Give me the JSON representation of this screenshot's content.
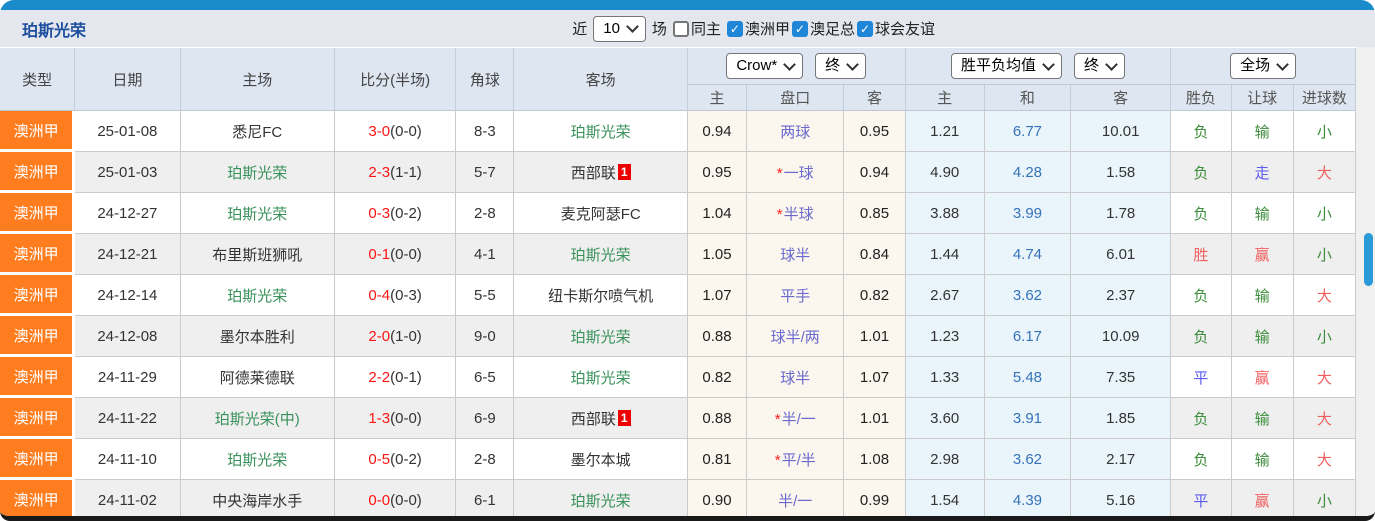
{
  "panel": {
    "title": "珀斯光荣",
    "controls": {
      "near_label": "近",
      "count_value": "10",
      "games_label": "场",
      "same_home": {
        "label": "同主",
        "checked": false
      },
      "league_filters": [
        {
          "label": "澳洲甲",
          "checked": true
        },
        {
          "label": "澳足总",
          "checked": true
        },
        {
          "label": "球会友谊",
          "checked": true
        }
      ]
    }
  },
  "table": {
    "main_headers": [
      "类型",
      "日期",
      "主场",
      "比分(半场)",
      "角球",
      "客场"
    ],
    "odds_group": {
      "company_select": "Crow*",
      "time_select": "终"
    },
    "mean_group": {
      "label_select": "胜平负均值",
      "time_select": "终"
    },
    "result_group": {
      "scope_select": "全场"
    },
    "sub_headers": [
      "主",
      "盘口",
      "客",
      "主",
      "和",
      "客",
      "胜负",
      "让球",
      "进球数"
    ],
    "rows": [
      {
        "league": "澳洲甲",
        "date": "25-01-08",
        "home": {
          "name": "悉尼FC",
          "is_focus": false,
          "badge": null
        },
        "score": {
          "full": "3-0",
          "half": "(0-0)"
        },
        "corners": "8-3",
        "away": {
          "name": "珀斯光荣",
          "is_focus": true,
          "badge": null
        },
        "odds": {
          "home": "0.94",
          "handicap": "两球",
          "star": false,
          "away": "0.95"
        },
        "mean": {
          "home": "1.21",
          "draw": "6.77",
          "away": "10.01"
        },
        "results": {
          "outcome": {
            "text": "负",
            "tone": "green"
          },
          "handicap": {
            "text": "输",
            "tone": "green"
          },
          "goals": {
            "text": "小",
            "tone": "green"
          }
        }
      },
      {
        "league": "澳洲甲",
        "date": "25-01-03",
        "home": {
          "name": "珀斯光荣",
          "is_focus": true,
          "badge": null
        },
        "score": {
          "full": "2-3",
          "half": "(1-1)"
        },
        "corners": "5-7",
        "away": {
          "name": "西部联",
          "is_focus": false,
          "badge": "1"
        },
        "odds": {
          "home": "0.95",
          "handicap": "一球",
          "star": true,
          "away": "0.94"
        },
        "mean": {
          "home": "4.90",
          "draw": "4.28",
          "away": "1.58"
        },
        "results": {
          "outcome": {
            "text": "负",
            "tone": "green"
          },
          "handicap": {
            "text": "走",
            "tone": "blue"
          },
          "goals": {
            "text": "大",
            "tone": "red"
          }
        }
      },
      {
        "league": "澳洲甲",
        "date": "24-12-27",
        "home": {
          "name": "珀斯光荣",
          "is_focus": true,
          "badge": null
        },
        "score": {
          "full": "0-3",
          "half": "(0-2)"
        },
        "corners": "2-8",
        "away": {
          "name": "麦克阿瑟FC",
          "is_focus": false,
          "badge": null
        },
        "odds": {
          "home": "1.04",
          "handicap": "半球",
          "star": true,
          "away": "0.85"
        },
        "mean": {
          "home": "3.88",
          "draw": "3.99",
          "away": "1.78"
        },
        "results": {
          "outcome": {
            "text": "负",
            "tone": "green"
          },
          "handicap": {
            "text": "输",
            "tone": "green"
          },
          "goals": {
            "text": "小",
            "tone": "green"
          }
        }
      },
      {
        "league": "澳洲甲",
        "date": "24-12-21",
        "home": {
          "name": "布里斯班狮吼",
          "is_focus": false,
          "badge": null
        },
        "score": {
          "full": "0-1",
          "half": "(0-0)"
        },
        "corners": "4-1",
        "away": {
          "name": "珀斯光荣",
          "is_focus": true,
          "badge": null
        },
        "odds": {
          "home": "1.05",
          "handicap": "球半",
          "star": false,
          "away": "0.84"
        },
        "mean": {
          "home": "1.44",
          "draw": "4.74",
          "away": "6.01"
        },
        "results": {
          "outcome": {
            "text": "胜",
            "tone": "red"
          },
          "handicap": {
            "text": "赢",
            "tone": "red"
          },
          "goals": {
            "text": "小",
            "tone": "green"
          }
        }
      },
      {
        "league": "澳洲甲",
        "date": "24-12-14",
        "home": {
          "name": "珀斯光荣",
          "is_focus": true,
          "badge": null
        },
        "score": {
          "full": "0-4",
          "half": "(0-3)"
        },
        "corners": "5-5",
        "away": {
          "name": "纽卡斯尔喷气机",
          "is_focus": false,
          "badge": null
        },
        "odds": {
          "home": "1.07",
          "handicap": "平手",
          "star": false,
          "away": "0.82"
        },
        "mean": {
          "home": "2.67",
          "draw": "3.62",
          "away": "2.37"
        },
        "results": {
          "outcome": {
            "text": "负",
            "tone": "green"
          },
          "handicap": {
            "text": "输",
            "tone": "green"
          },
          "goals": {
            "text": "大",
            "tone": "red"
          }
        }
      },
      {
        "league": "澳洲甲",
        "date": "24-12-08",
        "home": {
          "name": "墨尔本胜利",
          "is_focus": false,
          "badge": null
        },
        "score": {
          "full": "2-0",
          "half": "(1-0)"
        },
        "corners": "9-0",
        "away": {
          "name": "珀斯光荣",
          "is_focus": true,
          "badge": null
        },
        "odds": {
          "home": "0.88",
          "handicap": "球半/两",
          "star": false,
          "away": "1.01"
        },
        "mean": {
          "home": "1.23",
          "draw": "6.17",
          "away": "10.09"
        },
        "results": {
          "outcome": {
            "text": "负",
            "tone": "green"
          },
          "handicap": {
            "text": "输",
            "tone": "green"
          },
          "goals": {
            "text": "小",
            "tone": "green"
          }
        }
      },
      {
        "league": "澳洲甲",
        "date": "24-11-29",
        "home": {
          "name": "阿德莱德联",
          "is_focus": false,
          "badge": null
        },
        "score": {
          "full": "2-2",
          "half": "(0-1)"
        },
        "corners": "6-5",
        "away": {
          "name": "珀斯光荣",
          "is_focus": true,
          "badge": null
        },
        "odds": {
          "home": "0.82",
          "handicap": "球半",
          "star": false,
          "away": "1.07"
        },
        "mean": {
          "home": "1.33",
          "draw": "5.48",
          "away": "7.35"
        },
        "results": {
          "outcome": {
            "text": "平",
            "tone": "blue"
          },
          "handicap": {
            "text": "赢",
            "tone": "red"
          },
          "goals": {
            "text": "大",
            "tone": "red"
          }
        }
      },
      {
        "league": "澳洲甲",
        "date": "24-11-22",
        "home": {
          "name": "珀斯光荣(中)",
          "is_focus": true,
          "badge": null
        },
        "score": {
          "full": "1-3",
          "half": "(0-0)"
        },
        "corners": "6-9",
        "away": {
          "name": "西部联",
          "is_focus": false,
          "badge": "1"
        },
        "odds": {
          "home": "0.88",
          "handicap": "半/一",
          "star": true,
          "away": "1.01"
        },
        "mean": {
          "home": "3.60",
          "draw": "3.91",
          "away": "1.85"
        },
        "results": {
          "outcome": {
            "text": "负",
            "tone": "green"
          },
          "handicap": {
            "text": "输",
            "tone": "green"
          },
          "goals": {
            "text": "大",
            "tone": "red"
          }
        }
      },
      {
        "league": "澳洲甲",
        "date": "24-11-10",
        "home": {
          "name": "珀斯光荣",
          "is_focus": true,
          "badge": null
        },
        "score": {
          "full": "0-5",
          "half": "(0-2)"
        },
        "corners": "2-8",
        "away": {
          "name": "墨尔本城",
          "is_focus": false,
          "badge": null
        },
        "odds": {
          "home": "0.81",
          "handicap": "平/半",
          "star": true,
          "away": "1.08"
        },
        "mean": {
          "home": "2.98",
          "draw": "3.62",
          "away": "2.17"
        },
        "results": {
          "outcome": {
            "text": "负",
            "tone": "green"
          },
          "handicap": {
            "text": "输",
            "tone": "green"
          },
          "goals": {
            "text": "大",
            "tone": "red"
          }
        }
      },
      {
        "league": "澳洲甲",
        "date": "24-11-02",
        "home": {
          "name": "中央海岸水手",
          "is_focus": false,
          "badge": null
        },
        "score": {
          "full": "0-0",
          "half": "(0-0)"
        },
        "corners": "6-1",
        "away": {
          "name": "珀斯光荣",
          "is_focus": true,
          "badge": null
        },
        "odds": {
          "home": "0.90",
          "handicap": "半/一",
          "star": false,
          "away": "0.99"
        },
        "mean": {
          "home": "1.54",
          "draw": "4.39",
          "away": "5.16"
        },
        "results": {
          "outcome": {
            "text": "平",
            "tone": "blue"
          },
          "handicap": {
            "text": "赢",
            "tone": "red"
          },
          "goals": {
            "text": "小",
            "tone": "green"
          }
        }
      }
    ]
  },
  "colors": {
    "accent_orange": "#ff7c1f",
    "focus_green": "#38915a",
    "score_red": "#ff1414",
    "tone_green": "#3c8d3c",
    "tone_red": "#f25f5f",
    "tone_blue": "#5a5af0",
    "handicap_purple": "#6a6ace",
    "mean_blue": "#3672b9",
    "title_blue": "#1d4f9e",
    "top_bar_blue": "#1a8ccc",
    "thumb_blue": "#2b9ad8",
    "check_blue": "#1f86d8",
    "header_bg": "#dde6f1",
    "titlebar_bg": "#e4e7ed",
    "row_alt": "#efefef",
    "cream": "#fbf6ee",
    "pale_blue": "#eaf5fb"
  }
}
